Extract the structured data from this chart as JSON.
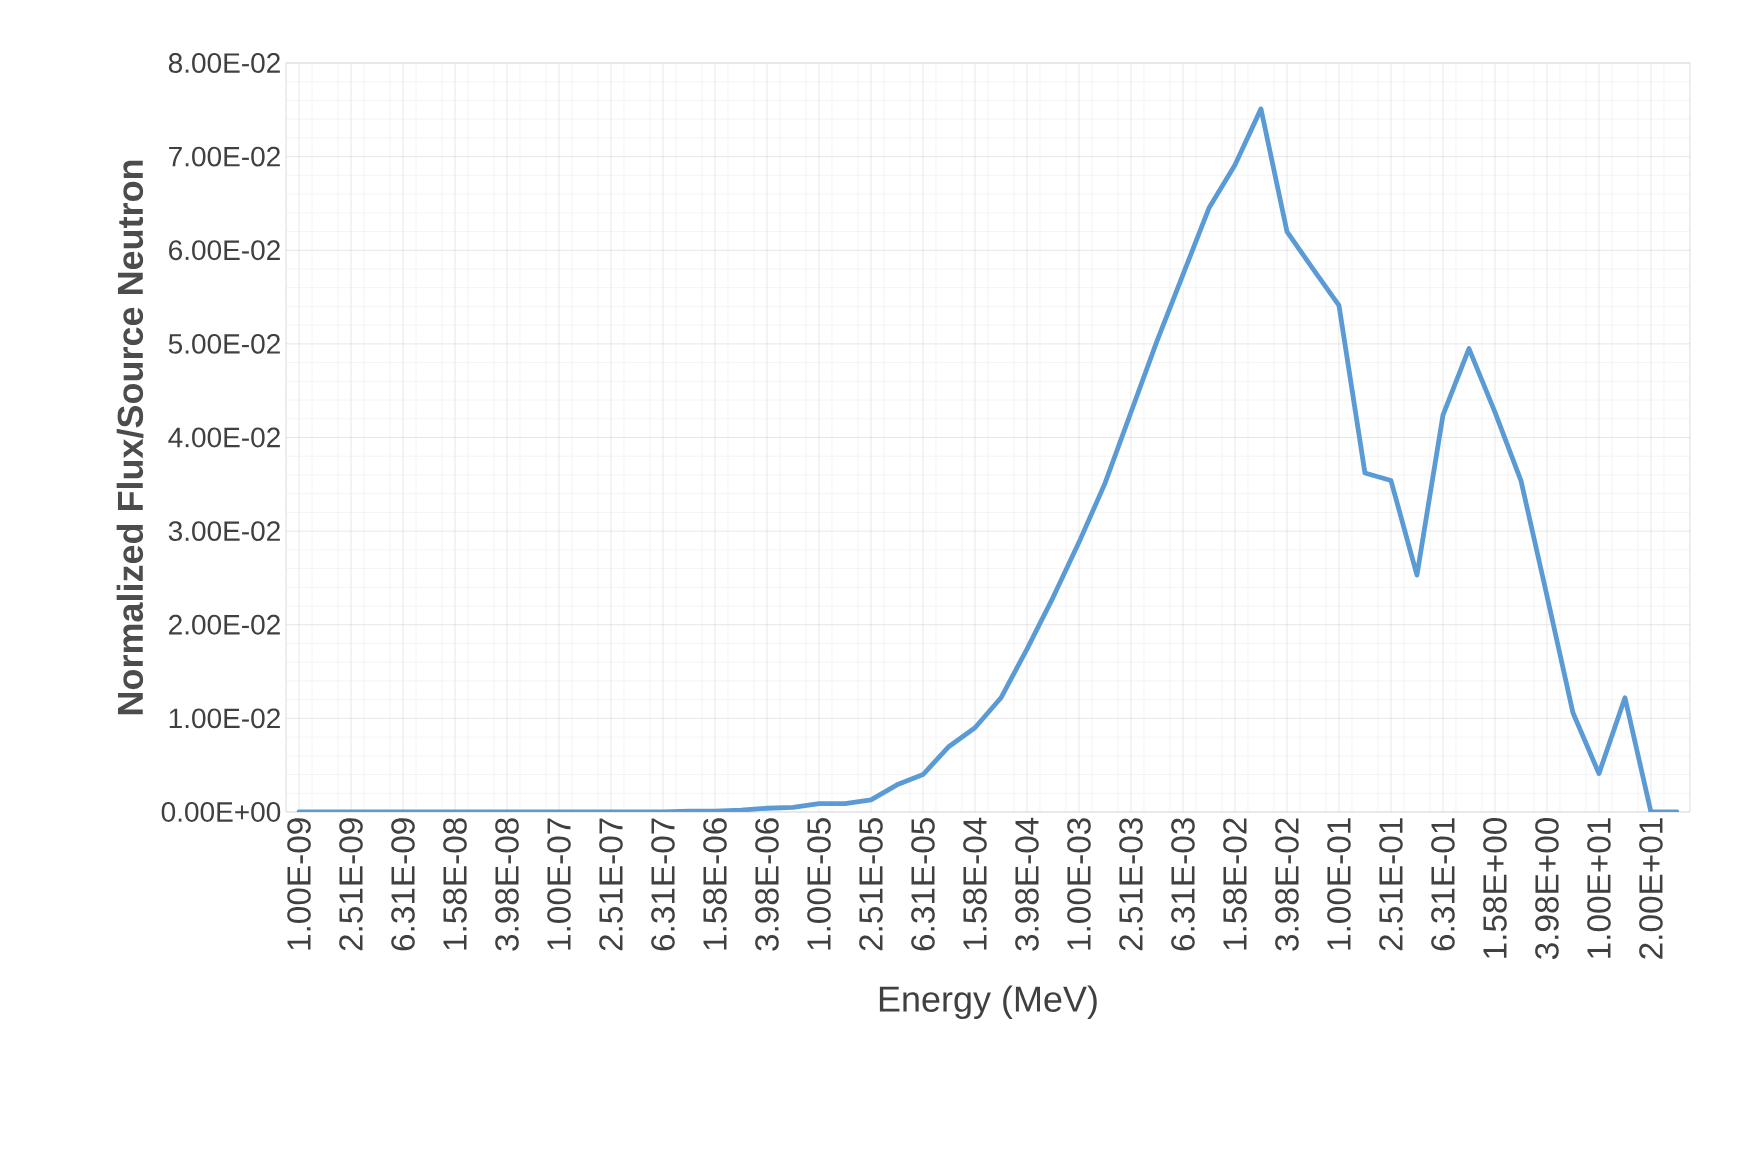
{
  "chart_data": {
    "type": "line",
    "xlabel": "Energy (MeV)",
    "ylabel": "Normalized Flux/Source Neutron",
    "categories": [
      "1.00E-09",
      null,
      "2.51E-09",
      null,
      "6.31E-09",
      null,
      "1.58E-08",
      null,
      "3.98E-08",
      null,
      "1.00E-07",
      null,
      "2.51E-07",
      null,
      "6.31E-07",
      null,
      "1.58E-06",
      null,
      "3.98E-06",
      null,
      "1.00E-05",
      null,
      "2.51E-05",
      null,
      "6.31E-05",
      null,
      "1.58E-04",
      null,
      "3.98E-04",
      null,
      "1.00E-03",
      null,
      "2.51E-03",
      null,
      "6.31E-03",
      null,
      "1.58E-02",
      null,
      "3.98E-02",
      null,
      "1.00E-01",
      null,
      "2.51E-01",
      null,
      "6.31E-01",
      null,
      "1.58E+00",
      null,
      "3.98E+00",
      null,
      "1.00E+01",
      null,
      "2.00E+01",
      null
    ],
    "series": [
      {
        "color": "#5b9bd5",
        "values": [
          0,
          0,
          0,
          0,
          0,
          0,
          0,
          0,
          0,
          0,
          0,
          0,
          0,
          0,
          0,
          0.0001,
          0.0001,
          0.0002,
          0.0004,
          0.0005,
          0.0009,
          0.0009,
          0.0013,
          0.0029,
          0.004,
          0.007,
          0.009,
          0.0122,
          0.0174,
          0.0229,
          0.0288,
          0.0351,
          0.0427,
          0.0503,
          0.0574,
          0.0645,
          0.0691,
          0.0751,
          0.062,
          0.058,
          0.0541,
          0.0362,
          0.0354,
          0.0253,
          0.0424,
          0.0495,
          0.0427,
          0.0354,
          0.0231,
          0.0106,
          0.0041,
          0.0122,
          0,
          0
        ]
      }
    ],
    "ylim": [
      0,
      0.08
    ],
    "yticks": [
      {
        "value": 0,
        "label": "0.00E+00"
      },
      {
        "value": 0.01,
        "label": "1.00E-02"
      },
      {
        "value": 0.02,
        "label": "2.00E-02"
      },
      {
        "value": 0.03,
        "label": "3.00E-02"
      },
      {
        "value": 0.04,
        "label": "4.00E-02"
      },
      {
        "value": 0.05,
        "label": "5.00E-02"
      },
      {
        "value": 0.06,
        "label": "6.00E-02"
      },
      {
        "value": 0.07,
        "label": "7.00E-02"
      },
      {
        "value": 0.08,
        "label": "8.00E-02"
      }
    ],
    "grid": true,
    "marker": "none",
    "line_style": "solid"
  }
}
